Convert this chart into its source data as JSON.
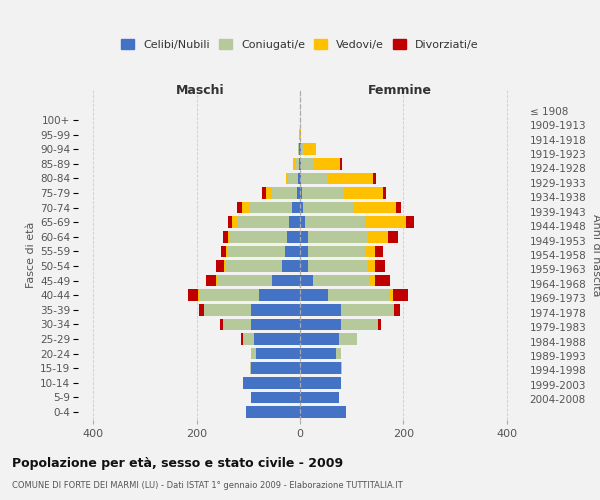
{
  "age_groups": [
    "0-4",
    "5-9",
    "10-14",
    "15-19",
    "20-24",
    "25-29",
    "30-34",
    "35-39",
    "40-44",
    "45-49",
    "50-54",
    "55-59",
    "60-64",
    "65-69",
    "70-74",
    "75-79",
    "80-84",
    "85-89",
    "90-94",
    "95-99",
    "100+"
  ],
  "birth_years": [
    "2004-2008",
    "1999-2003",
    "1994-1998",
    "1989-1993",
    "1984-1988",
    "1979-1983",
    "1974-1978",
    "1969-1973",
    "1964-1968",
    "1959-1963",
    "1954-1958",
    "1949-1953",
    "1944-1948",
    "1939-1943",
    "1934-1938",
    "1929-1933",
    "1924-1928",
    "1919-1923",
    "1914-1918",
    "1909-1913",
    "≤ 1908"
  ],
  "maschi": {
    "celibi": [
      105,
      95,
      110,
      95,
      85,
      90,
      95,
      95,
      80,
      55,
      35,
      30,
      25,
      22,
      15,
      5,
      3,
      2,
      1,
      0,
      0
    ],
    "coniugati": [
      0,
      0,
      0,
      2,
      10,
      20,
      55,
      90,
      115,
      105,
      110,
      110,
      110,
      100,
      82,
      50,
      20,
      8,
      2,
      1,
      0
    ],
    "vedovi": [
      0,
      0,
      0,
      0,
      0,
      0,
      0,
      1,
      2,
      2,
      2,
      3,
      5,
      10,
      15,
      10,
      5,
      3,
      0,
      0,
      0
    ],
    "divorziati": [
      0,
      0,
      0,
      0,
      0,
      5,
      5,
      10,
      20,
      20,
      15,
      10,
      10,
      8,
      10,
      8,
      0,
      0,
      0,
      0,
      0
    ]
  },
  "femmine": {
    "nubili": [
      90,
      75,
      80,
      80,
      70,
      75,
      80,
      80,
      55,
      25,
      15,
      15,
      15,
      10,
      5,
      3,
      2,
      2,
      1,
      0,
      0
    ],
    "coniugate": [
      0,
      0,
      0,
      2,
      10,
      35,
      70,
      100,
      120,
      110,
      115,
      110,
      115,
      115,
      100,
      80,
      50,
      25,
      5,
      0,
      0
    ],
    "vedove": [
      0,
      0,
      0,
      0,
      0,
      0,
      2,
      3,
      5,
      10,
      15,
      20,
      40,
      80,
      80,
      78,
      90,
      50,
      25,
      2,
      0
    ],
    "divorziate": [
      0,
      0,
      0,
      0,
      0,
      0,
      5,
      10,
      30,
      30,
      20,
      15,
      20,
      15,
      10,
      5,
      5,
      5,
      0,
      0,
      0
    ]
  },
  "colors": {
    "celibi": "#4472c4",
    "coniugati": "#b5c99a",
    "vedovi": "#ffc000",
    "divorziati": "#c00000"
  },
  "xlim": 430,
  "xticks": [
    -400,
    -200,
    0,
    200,
    400
  ],
  "xtick_labels": [
    "400",
    "200",
    "0",
    "200",
    "400"
  ],
  "title": "Popolazione per età, sesso e stato civile - 2009",
  "subtitle": "COMUNE DI FORTE DEI MARMI (LU) - Dati ISTAT 1° gennaio 2009 - Elaborazione TUTTITALIA.IT",
  "ylabel_left": "Fasce di età",
  "ylabel_right": "Anni di nascita",
  "xlabel_maschi": "Maschi",
  "xlabel_femmine": "Femmine",
  "legend_labels": [
    "Celibi/Nubili",
    "Coniugati/e",
    "Vedovi/e",
    "Divorziati/e"
  ],
  "bg_color": "#f2f2f2",
  "grid_color": "#cccccc"
}
